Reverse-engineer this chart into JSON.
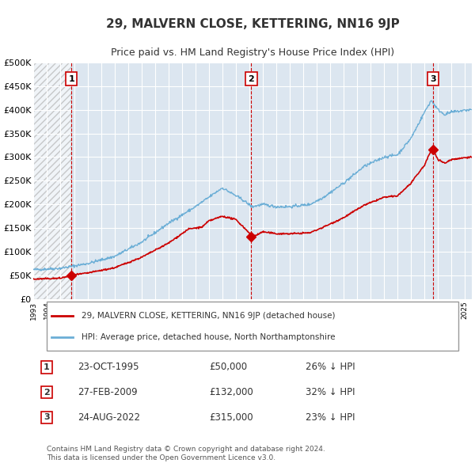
{
  "title": "29, MALVERN CLOSE, KETTERING, NN16 9JP",
  "subtitle": "Price paid vs. HM Land Registry's House Price Index (HPI)",
  "background_color": "#dce6f0",
  "plot_bg_color": "#dce6f0",
  "hpi_color": "#6baed6",
  "price_color": "#cc0000",
  "sale_marker_color": "#cc0000",
  "dashed_line_color": "#cc0000",
  "ylabel_color": "#333333",
  "grid_color": "#ffffff",
  "ylim": [
    0,
    500000
  ],
  "yticks": [
    0,
    50000,
    100000,
    150000,
    200000,
    250000,
    300000,
    350000,
    400000,
    450000,
    500000
  ],
  "sales": [
    {
      "label": "1",
      "date": "23-OCT-1995",
      "price": 50000,
      "hpi_pct": "26% ↓ HPI",
      "x_year": 1995.8
    },
    {
      "label": "2",
      "date": "27-FEB-2009",
      "price": 132000,
      "hpi_pct": "32% ↓ HPI",
      "x_year": 2009.15
    },
    {
      "label": "3",
      "date": "24-AUG-2022",
      "price": 315000,
      "hpi_pct": "23% ↓ HPI",
      "x_year": 2022.65
    }
  ],
  "legend_label_price": "29, MALVERN CLOSE, KETTERING, NN16 9JP (detached house)",
  "legend_label_hpi": "HPI: Average price, detached house, North Northamptonshire",
  "footnote": "Contains HM Land Registry data © Crown copyright and database right 2024.\nThis data is licensed under the Open Government Licence v3.0.",
  "xmin": 1993,
  "xmax": 2025.5
}
